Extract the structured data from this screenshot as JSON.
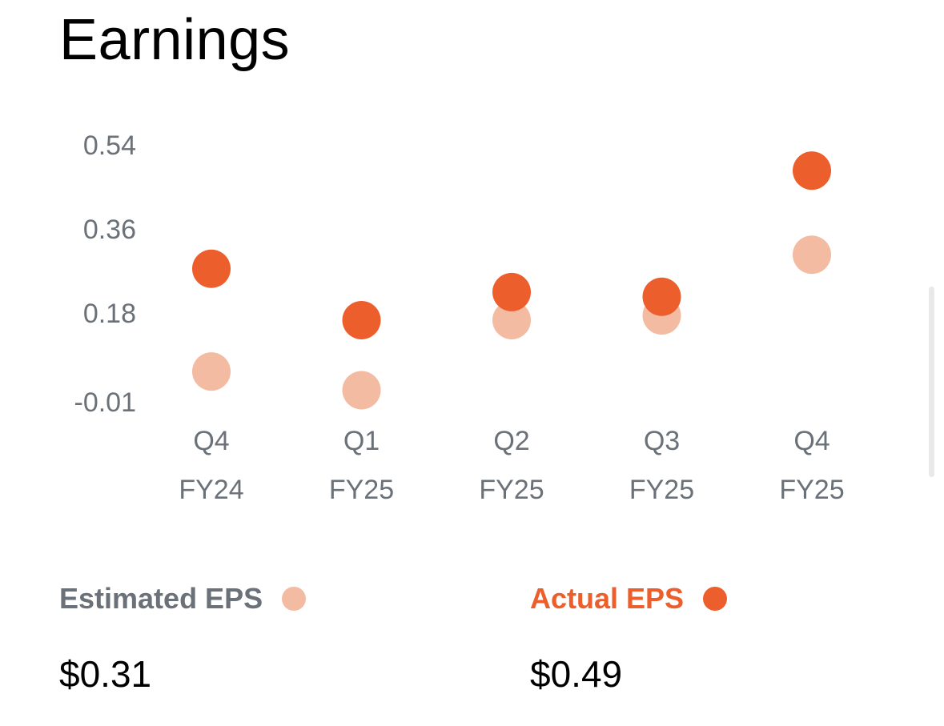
{
  "header": {
    "title": "Earnings"
  },
  "chart_data": {
    "type": "scatter",
    "categories": [
      {
        "quarter": "Q4",
        "fiscal_year": "FY24"
      },
      {
        "quarter": "Q1",
        "fiscal_year": "FY25"
      },
      {
        "quarter": "Q2",
        "fiscal_year": "FY25"
      },
      {
        "quarter": "Q3",
        "fiscal_year": "FY25"
      },
      {
        "quarter": "Q4",
        "fiscal_year": "FY25"
      }
    ],
    "y_ticks": [
      {
        "value": 0.54,
        "label": "0.54"
      },
      {
        "value": 0.36,
        "label": "0.36"
      },
      {
        "value": 0.18,
        "label": "0.18"
      },
      {
        "value": -0.01,
        "label": "-0.01"
      }
    ],
    "ylim": [
      -0.01,
      0.54
    ],
    "series": [
      {
        "name": "Estimated EPS",
        "color": "#f3bca2",
        "values": [
          0.06,
          0.02,
          0.17,
          0.18,
          0.31
        ]
      },
      {
        "name": "Actual EPS",
        "color": "#ec5e2b",
        "values": [
          0.28,
          0.17,
          0.23,
          0.22,
          0.49
        ]
      }
    ],
    "grid": false
  },
  "legend": {
    "estimated": {
      "label": "Estimated EPS",
      "value": "$0.31",
      "color": "#f3bca2"
    },
    "actual": {
      "label": "Actual EPS",
      "value": "$0.49",
      "color": "#ec5e2b"
    }
  }
}
